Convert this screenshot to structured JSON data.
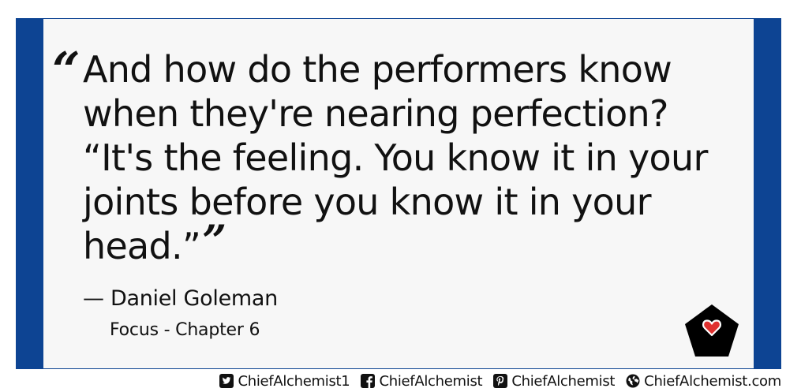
{
  "quote": {
    "open_mark": "“",
    "text": "And how do the performers know when they're nearing perfection? “It's the feeling. You know it in your joints before you know it in your head.”",
    "close_mark": "”"
  },
  "attribution": {
    "author": "— Daniel Goleman",
    "source": "Focus - Chapter 6"
  },
  "footer": {
    "twitter": "ChiefAlchemist1",
    "facebook": "ChiefAlchemist",
    "pinterest": "ChiefAlchemist",
    "website": "ChiefAlchemist.com"
  },
  "colors": {
    "frame": "#0d4493",
    "panel": "#f7f7f7",
    "text": "#111111",
    "badge": "#000000",
    "heart": "#e0312f"
  },
  "icons": [
    "heart-badge-icon",
    "twitter-icon",
    "facebook-icon",
    "pinterest-icon",
    "globe-icon"
  ]
}
